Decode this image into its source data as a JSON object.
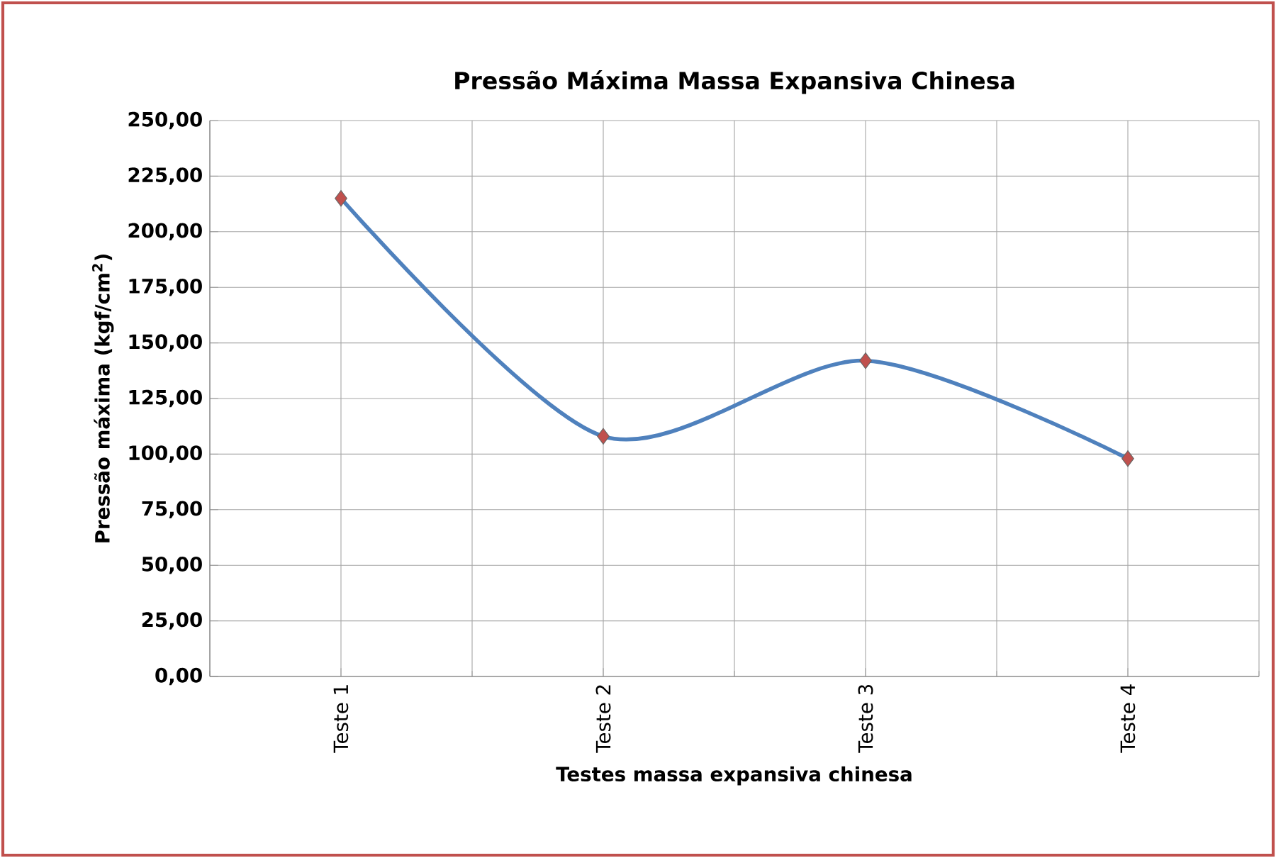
{
  "chart_data": {
    "type": "line",
    "title": "Pressão Máxima Massa Expansiva Chinesa",
    "xlabel": "Testes massa expansiva chinesa",
    "ylabel": "Pressão máxima (kgf/cm$^{2}$)",
    "categories": [
      "Teste 1",
      "Teste 2",
      "Teste 3",
      "Teste 4"
    ],
    "series": [
      {
        "color": "#4f81bd",
        "colors": [
          "#c0504d",
          "#c0504d",
          "#c0504d",
          "#c0504d"
        ],
        "values": [
          215,
          108,
          142,
          98
        ]
      }
    ],
    "ylim": [
      0,
      250
    ],
    "yticks": [
      {
        "value": 0,
        "label": "0,00"
      },
      {
        "value": 25,
        "label": "25,00"
      },
      {
        "value": 50,
        "label": "50,00"
      },
      {
        "value": 75,
        "label": "75,00"
      },
      {
        "value": 100,
        "label": "100,00"
      },
      {
        "value": 125,
        "label": "125,00"
      },
      {
        "value": 150,
        "label": "150,00"
      },
      {
        "value": 175,
        "label": "175,00"
      },
      {
        "value": 200,
        "label": "200,00"
      },
      {
        "value": 225,
        "label": "225,00"
      },
      {
        "value": 250,
        "label": "250,00"
      }
    ],
    "grid": true,
    "marker": "diamond",
    "line_style": "solid"
  }
}
